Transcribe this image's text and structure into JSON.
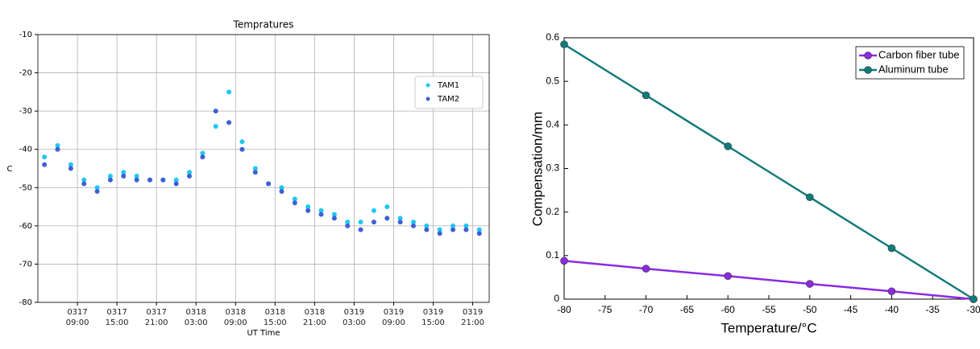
{
  "chart_data": [
    {
      "type": "scatter",
      "title": "Tempratures",
      "xlabel": "UT Time",
      "ylabel": "C",
      "xlim": [
        "0317 03:00",
        "0319 23:30"
      ],
      "xticks": [
        "0317 09:00",
        "0317 15:00",
        "0317 21:00",
        "0318 03:00",
        "0318 09:00",
        "0318 15:00",
        "0318 21:00",
        "0319 03:00",
        "0319 09:00",
        "0319 15:00",
        "0319 21:00"
      ],
      "ylim": [
        -80,
        -10
      ],
      "yticks": [
        -80,
        -70,
        -60,
        -50,
        -40,
        -30,
        -20,
        -10
      ],
      "grid": true,
      "legend": "upper right",
      "x": [
        "0317 04:00",
        "0317 06:00",
        "0317 08:00",
        "0317 10:00",
        "0317 12:00",
        "0317 14:00",
        "0317 16:00",
        "0317 18:00",
        "0317 20:00",
        "0317 22:00",
        "0318 00:00",
        "0318 02:00",
        "0318 04:00",
        "0318 06:00",
        "0318 08:00",
        "0318 10:00",
        "0318 12:00",
        "0318 14:00",
        "0318 16:00",
        "0318 18:00",
        "0318 20:00",
        "0318 22:00",
        "0319 00:00",
        "0319 02:00",
        "0319 04:00",
        "0319 06:00",
        "0319 08:00",
        "0319 10:00",
        "0319 12:00",
        "0319 14:00",
        "0319 16:00",
        "0319 18:00",
        "0319 20:00",
        "0319 22:00"
      ],
      "series": [
        {
          "name": "TAM1",
          "color": "#1ec8f0",
          "values": [
            -42,
            -39,
            -44,
            -48,
            -50,
            -47,
            -46,
            -47,
            -48,
            -48,
            -48,
            -46,
            -41,
            -34,
            -25,
            -38,
            -45,
            -49,
            -50,
            -53,
            -55,
            -56,
            -57,
            -59,
            -59,
            -56,
            -55,
            -58,
            -59,
            -60,
            -61,
            -60,
            -60,
            -61
          ]
        },
        {
          "name": "TAM2",
          "color": "#3f5fd6",
          "values": [
            -44,
            -40,
            -45,
            -49,
            -51,
            -48,
            -47,
            -48,
            -48,
            -48,
            -49,
            -47,
            -42,
            -30,
            -33,
            -40,
            -46,
            -49,
            -51,
            -54,
            -56,
            -57,
            -58,
            -60,
            -61,
            -59,
            -58,
            -59,
            -60,
            -61,
            -62,
            -61,
            -61,
            -62
          ]
        }
      ]
    },
    {
      "type": "line",
      "xlabel": "Temperature/°C",
      "ylabel": "Compensation/mm",
      "legend": "upper right",
      "x": [
        -80,
        -70,
        -60,
        -50,
        -40,
        -30
      ],
      "xlim": [
        -80,
        -30
      ],
      "xticks": [
        -80,
        -75,
        -70,
        -65,
        -60,
        -55,
        -50,
        -45,
        -40,
        -35,
        -30
      ],
      "ylim": [
        0,
        0.6
      ],
      "yticks": [
        0,
        0.1,
        0.2,
        0.3,
        0.4,
        0.5,
        0.6
      ],
      "series": [
        {
          "name": "Carbon fiber tube",
          "color": "#8a2be2",
          "values": [
            0.088,
            0.07,
            0.053,
            0.035,
            0.018,
            0
          ]
        },
        {
          "name": "Aluminum tube",
          "color": "#117a7a",
          "values": [
            0.585,
            0.468,
            0.351,
            0.234,
            0.117,
            0
          ]
        }
      ]
    }
  ]
}
